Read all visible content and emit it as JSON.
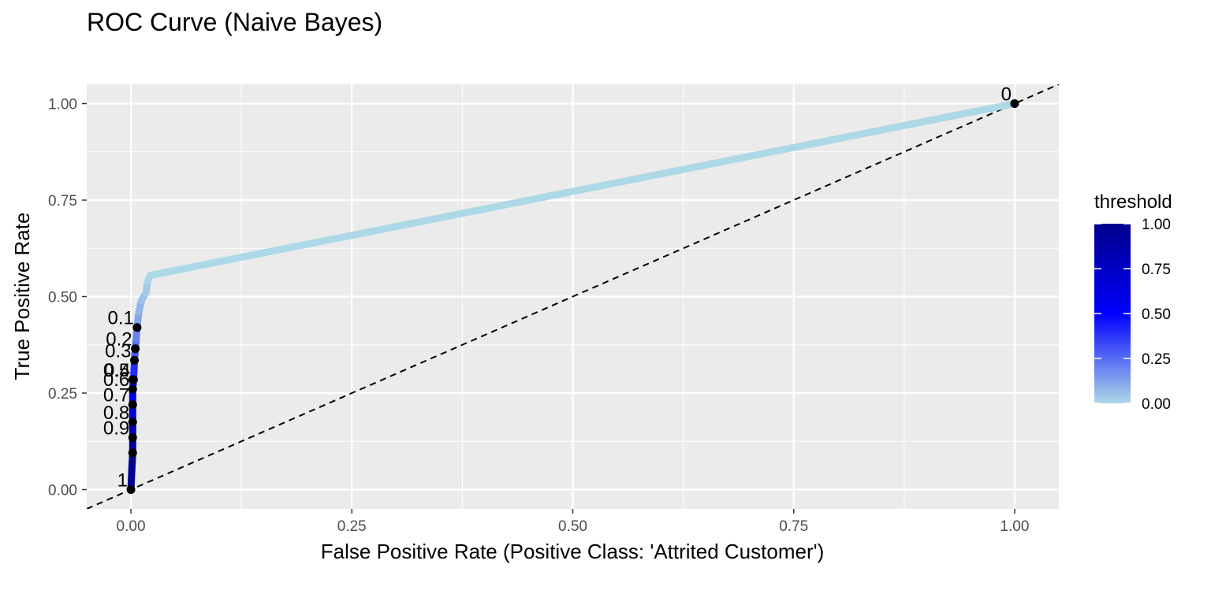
{
  "chart_data": {
    "type": "line",
    "title": "ROC Curve (Naive Bayes)",
    "xlabel": "False Positive Rate (Positive Class: 'Attrited Customer')",
    "ylabel": "True Positive Rate",
    "xlim": [
      -0.05,
      1.05
    ],
    "ylim": [
      -0.05,
      1.05
    ],
    "x_ticks": [
      "0.00",
      "0.25",
      "0.50",
      "0.75",
      "1.00"
    ],
    "y_ticks": [
      "0.00",
      "0.25",
      "0.50",
      "0.75",
      "1.00"
    ],
    "grid": true,
    "panel_background": "#ebebeb",
    "reference_line": {
      "from": [
        0,
        0
      ],
      "to": [
        1,
        1
      ],
      "style": "dashed",
      "color": "#000000"
    },
    "series": [
      {
        "points": [
          {
            "fpr": 0.0,
            "tpr": 0.0,
            "threshold": 1.0
          },
          {
            "fpr": 0.001,
            "tpr": 0.05,
            "threshold": 0.97
          },
          {
            "fpr": 0.002,
            "tpr": 0.095,
            "threshold": 0.95
          },
          {
            "fpr": 0.002,
            "tpr": 0.135,
            "threshold": 0.9
          },
          {
            "fpr": 0.002,
            "tpr": 0.175,
            "threshold": 0.8
          },
          {
            "fpr": 0.002,
            "tpr": 0.22,
            "threshold": 0.7
          },
          {
            "fpr": 0.002,
            "tpr": 0.26,
            "threshold": 0.6
          },
          {
            "fpr": 0.003,
            "tpr": 0.285,
            "threshold": 0.5
          },
          {
            "fpr": 0.004,
            "tpr": 0.335,
            "threshold": 0.4
          },
          {
            "fpr": 0.005,
            "tpr": 0.365,
            "threshold": 0.3
          },
          {
            "fpr": 0.006,
            "tpr": 0.39,
            "threshold": 0.25
          },
          {
            "fpr": 0.007,
            "tpr": 0.42,
            "threshold": 0.2
          },
          {
            "fpr": 0.009,
            "tpr": 0.46,
            "threshold": 0.12
          },
          {
            "fpr": 0.012,
            "tpr": 0.49,
            "threshold": 0.08
          },
          {
            "fpr": 0.017,
            "tpr": 0.51,
            "threshold": 0.05
          },
          {
            "fpr": 0.019,
            "tpr": 0.54,
            "threshold": 0.03
          },
          {
            "fpr": 0.022,
            "tpr": 0.555,
            "threshold": 0.01
          },
          {
            "fpr": 1.0,
            "tpr": 1.0,
            "threshold": 0.0
          }
        ]
      }
    ],
    "threshold_points": [
      {
        "label": "0",
        "fpr": 1.0,
        "tpr": 1.0
      },
      {
        "label": "0.1",
        "fpr": 0.007,
        "tpr": 0.42
      },
      {
        "label": "0.2",
        "fpr": 0.005,
        "tpr": 0.365
      },
      {
        "label": "0.3",
        "fpr": 0.004,
        "tpr": 0.335
      },
      {
        "label": "0.4",
        "fpr": 0.003,
        "tpr": 0.285
      },
      {
        "label": "0.5",
        "fpr": 0.002,
        "tpr": 0.285
      },
      {
        "label": "0.6",
        "fpr": 0.002,
        "tpr": 0.26
      },
      {
        "label": "0.7",
        "fpr": 0.002,
        "tpr": 0.22
      },
      {
        "label": "0.8",
        "fpr": 0.002,
        "tpr": 0.175
      },
      {
        "label": "0.9",
        "fpr": 0.002,
        "tpr": 0.135
      },
      {
        "label": "1",
        "fpr": 0.0,
        "tpr": 0.0
      }
    ],
    "extra_points": [
      {
        "fpr": 0.002,
        "tpr": 0.095
      }
    ],
    "legend": {
      "title": "threshold",
      "position": "right",
      "ticks": [
        "1.00",
        "0.75",
        "0.50",
        "0.25",
        "0.00"
      ],
      "tick_values": [
        1.0,
        0.75,
        0.5,
        0.25,
        0.0
      ],
      "color_stops": [
        {
          "value": 0.0,
          "color": "#add8e6"
        },
        {
          "value": 0.5,
          "color": "#0000ff"
        },
        {
          "value": 1.0,
          "color": "#00008b"
        }
      ]
    }
  }
}
